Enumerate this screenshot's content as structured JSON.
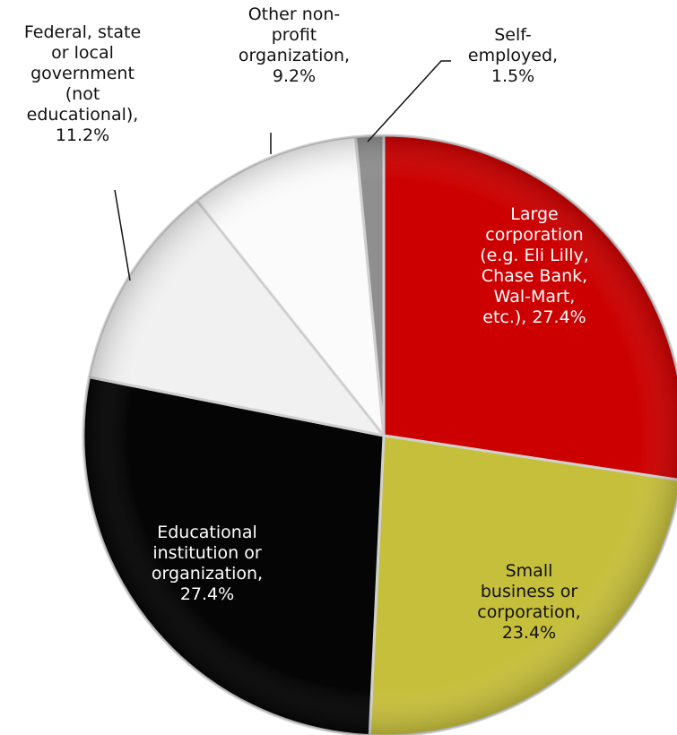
{
  "chart_data": {
    "type": "pie",
    "title": "",
    "start_angle_deg": 0,
    "direction": "clockwise",
    "legend": "none",
    "slices": [
      {
        "name": "Large corporation (e.g. Eli Lilly, Chase Bank, Wal-Mart, etc.)",
        "value": 27.4,
        "color": "#cc0000",
        "text_color": "#ffffff",
        "label_lines": [
          "Large",
          "corporation",
          "(e.g. Eli Lilly,",
          "Chase Bank,",
          "Wal-Mart,",
          "etc.), 27.4%"
        ]
      },
      {
        "name": "Small business or corporation",
        "value": 23.4,
        "color": "#c6bf3c",
        "text_color": "#111111",
        "label_lines": [
          "Small",
          "business or",
          "corporation,",
          "23.4%"
        ]
      },
      {
        "name": "Educational institution or organization",
        "value": 27.4,
        "color": "#050505",
        "text_color": "#ffffff",
        "label_lines": [
          "Educational",
          "institution or",
          "organization,",
          "27.4%"
        ]
      },
      {
        "name": "Federal, state or local government (not educational)",
        "value": 11.2,
        "color": "#f1f1f1",
        "text_color": "#111111",
        "label_lines": [
          "Federal, state",
          "or local",
          "government",
          "(not",
          "educational),",
          "11.2%"
        ]
      },
      {
        "name": "Other non-profit organization",
        "value": 9.2,
        "color": "#fbfbfb",
        "text_color": "#111111",
        "label_lines": [
          "Other non-",
          "profit",
          "organization,",
          "9.2%"
        ]
      },
      {
        "name": "Self-employed",
        "value": 1.5,
        "color": "#8f8f8f",
        "text_color": "#111111",
        "label_lines": [
          "Self-",
          "employed,",
          "1.5%"
        ]
      }
    ]
  }
}
